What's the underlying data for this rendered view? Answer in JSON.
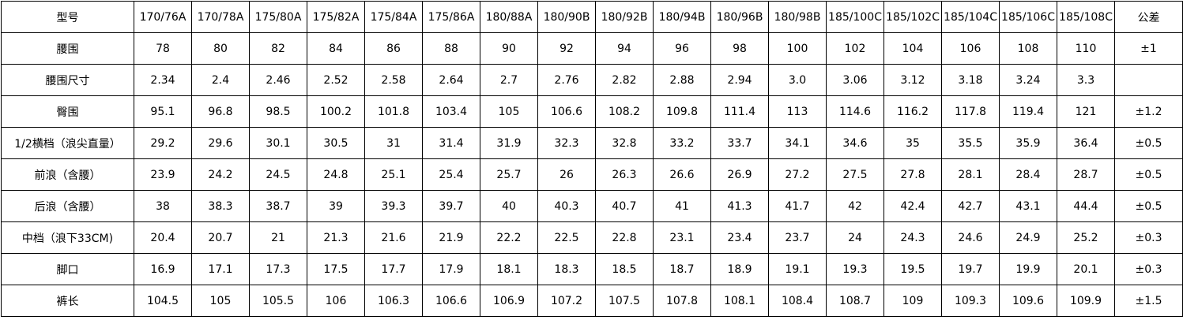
{
  "header": {
    "label": "型号",
    "sizes": [
      "170/76A",
      "170/78A",
      "175/80A",
      "175/82A",
      "175/84A",
      "175/86A",
      "180/88A",
      "180/90B",
      "180/92B",
      "180/94B",
      "180/96B",
      "180/98B",
      "185/100C",
      "185/102C",
      "185/104C",
      "185/106C",
      "185/108C"
    ],
    "tolerance": "公差"
  },
  "rows": [
    {
      "label": "腰围",
      "values": [
        "78",
        "80",
        "82",
        "84",
        "86",
        "88",
        "90",
        "92",
        "94",
        "96",
        "98",
        "100",
        "102",
        "104",
        "106",
        "108",
        "110"
      ],
      "tolerance": "±1"
    },
    {
      "label": "腰围尺寸",
      "values": [
        "2.34",
        "2.4",
        "2.46",
        "2.52",
        "2.58",
        "2.64",
        "2.7",
        "2.76",
        "2.82",
        "2.88",
        "2.94",
        "3.0",
        "3.06",
        "3.12",
        "3.18",
        "3.24",
        "3.3"
      ]
    },
    {
      "label": "臀围",
      "values": [
        "95.1",
        "96.8",
        "98.5",
        "100.2",
        "101.8",
        "103.4",
        "105",
        "106.6",
        "108.2",
        "109.8",
        "111.4",
        "113",
        "114.6",
        "116.2",
        "117.8",
        "119.4",
        "121"
      ],
      "tolerance": "±1.2"
    },
    {
      "label": "1/2横档（浪尖直量）",
      "values": [
        "29.2",
        "29.6",
        "30.1",
        "30.5",
        "31",
        "31.4",
        "31.9",
        "32.3",
        "32.8",
        "33.2",
        "33.7",
        "34.1",
        "34.6",
        "35",
        "35.5",
        "35.9",
        "36.4"
      ],
      "tolerance": "±0.5"
    },
    {
      "label": "前浪（含腰）",
      "values": [
        "23.9",
        "24.2",
        "24.5",
        "24.8",
        "25.1",
        "25.4",
        "25.7",
        "26",
        "26.3",
        "26.6",
        "26.9",
        "27.2",
        "27.5",
        "27.8",
        "28.1",
        "28.4",
        "28.7"
      ],
      "tolerance": "±0.5"
    },
    {
      "label": "后浪（含腰）",
      "values": [
        "38",
        "38.3",
        "38.7",
        "39",
        "39.3",
        "39.7",
        "40",
        "40.3",
        "40.7",
        "41",
        "41.3",
        "41.7",
        "42",
        "42.4",
        "42.7",
        "43.1",
        "44.4"
      ],
      "tolerance": "±0.5"
    },
    {
      "label": "中档（浪下33CM)",
      "values": [
        "20.4",
        "20.7",
        "21",
        "21.3",
        "21.6",
        "21.9",
        "22.2",
        "22.5",
        "22.8",
        "23.1",
        "23.4",
        "23.7",
        "24",
        "24.3",
        "24.6",
        "24.9",
        "25.2"
      ],
      "tolerance": "±0.3"
    },
    {
      "label": "脚口",
      "values": [
        "16.9",
        "17.1",
        "17.3",
        "17.5",
        "17.7",
        "17.9",
        "18.1",
        "18.3",
        "18.5",
        "18.7",
        "18.9",
        "19.1",
        "19.3",
        "19.5",
        "19.7",
        "19.9",
        "20.1"
      ],
      "tolerance": "±0.3"
    },
    {
      "label": "裤长",
      "values": [
        "104.5",
        "105",
        "105.5",
        "106",
        "106.3",
        "106.6",
        "106.9",
        "107.2",
        "107.5",
        "107.8",
        "108.1",
        "108.4",
        "108.7",
        "109",
        "109.3",
        "109.6",
        "109.9"
      ],
      "tolerance": "±1.5"
    }
  ]
}
